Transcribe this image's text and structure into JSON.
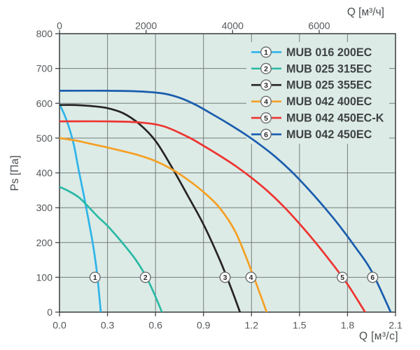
{
  "chart_data": {
    "type": "line",
    "title": "",
    "x_axis_bottom": {
      "label": "Q [м³/с]",
      "tick_labels": [
        "0.0",
        "0.3",
        "0.6",
        "0.9",
        "1.2",
        "1.5",
        "1.8",
        "2.1"
      ],
      "tick_values": [
        0,
        0.3,
        0.6,
        0.9,
        1.2,
        1.5,
        1.8,
        2.1
      ],
      "range": [
        0,
        2.1
      ]
    },
    "x_axis_top": {
      "label": "Q [м³/ч]",
      "tick_labels": [
        "0",
        "2000",
        "4000",
        "6000"
      ],
      "tick_values": [
        0,
        2000,
        4000,
        6000
      ]
    },
    "y_axis": {
      "label": "Ps [Па]",
      "tick_labels": [
        "0",
        "100",
        "200",
        "300",
        "400",
        "500",
        "600",
        "700",
        "800"
      ],
      "tick_values": [
        0,
        100,
        200,
        300,
        400,
        500,
        600,
        700,
        800
      ],
      "range": [
        0,
        800
      ]
    },
    "grid": true,
    "legend_position": "top-right",
    "series": [
      {
        "id": "1",
        "name": "MUB 016 200EC",
        "color": "#2fb4e9",
        "marker": {
          "q": 0.222,
          "p": 100
        },
        "points": [
          [
            0,
            597
          ],
          [
            0.03,
            568
          ],
          [
            0.06,
            530
          ],
          [
            0.09,
            480
          ],
          [
            0.12,
            408
          ],
          [
            0.15,
            340
          ],
          [
            0.18,
            268
          ],
          [
            0.21,
            192
          ],
          [
            0.235,
            110
          ],
          [
            0.258,
            0
          ]
        ]
      },
      {
        "id": "2",
        "name": "MUB 025 315EC",
        "color": "#2cb9a5",
        "marker": {
          "q": 0.537,
          "p": 100
        },
        "points": [
          [
            0,
            360
          ],
          [
            0.06,
            347
          ],
          [
            0.12,
            330
          ],
          [
            0.18,
            303
          ],
          [
            0.24,
            274
          ],
          [
            0.3,
            248
          ],
          [
            0.36,
            217
          ],
          [
            0.42,
            184
          ],
          [
            0.48,
            148
          ],
          [
            0.54,
            103
          ],
          [
            0.59,
            55
          ],
          [
            0.64,
            0
          ]
        ]
      },
      {
        "id": "3",
        "name": "MUB 025 355EC",
        "color": "#272324",
        "marker": {
          "q": 1.035,
          "p": 100
        },
        "points": [
          [
            0,
            595
          ],
          [
            0.1,
            595
          ],
          [
            0.2,
            592
          ],
          [
            0.3,
            586
          ],
          [
            0.4,
            571
          ],
          [
            0.5,
            540
          ],
          [
            0.6,
            492
          ],
          [
            0.7,
            418
          ],
          [
            0.8,
            336
          ],
          [
            0.9,
            252
          ],
          [
            1.0,
            152
          ],
          [
            1.07,
            72
          ],
          [
            1.128,
            0
          ]
        ]
      },
      {
        "id": "4",
        "name": "MUB 042 400EC",
        "color": "#f5a023",
        "marker": {
          "q": 1.197,
          "p": 100
        },
        "points": [
          [
            0,
            500
          ],
          [
            0.1,
            493
          ],
          [
            0.2,
            483
          ],
          [
            0.3,
            473
          ],
          [
            0.4,
            462
          ],
          [
            0.5,
            450
          ],
          [
            0.6,
            434
          ],
          [
            0.7,
            411
          ],
          [
            0.8,
            381
          ],
          [
            0.9,
            345
          ],
          [
            1.0,
            300
          ],
          [
            1.1,
            230
          ],
          [
            1.2,
            118
          ],
          [
            1.295,
            0
          ]
        ]
      },
      {
        "id": "5",
        "name": "MUB 042 450EC-K",
        "color": "#ee3430",
        "marker": {
          "q": 1.768,
          "p": 100
        },
        "points": [
          [
            0,
            548
          ],
          [
            0.3,
            548
          ],
          [
            0.5,
            545
          ],
          [
            0.65,
            534
          ],
          [
            0.8,
            504
          ],
          [
            0.9,
            478
          ],
          [
            1.0,
            450
          ],
          [
            1.1,
            420
          ],
          [
            1.2,
            386
          ],
          [
            1.3,
            348
          ],
          [
            1.4,
            304
          ],
          [
            1.5,
            254
          ],
          [
            1.6,
            200
          ],
          [
            1.7,
            142
          ],
          [
            1.8,
            80
          ],
          [
            1.91,
            0
          ]
        ]
      },
      {
        "id": "6",
        "name": "MUB 042 450EC",
        "color": "#1a5dae",
        "marker": {
          "q": 1.957,
          "p": 100
        },
        "points": [
          [
            0,
            636
          ],
          [
            0.3,
            636
          ],
          [
            0.5,
            634
          ],
          [
            0.65,
            628
          ],
          [
            0.75,
            616
          ],
          [
            0.85,
            596
          ],
          [
            0.95,
            570
          ],
          [
            1.05,
            543
          ],
          [
            1.15,
            514
          ],
          [
            1.25,
            482
          ],
          [
            1.35,
            446
          ],
          [
            1.45,
            404
          ],
          [
            1.55,
            356
          ],
          [
            1.65,
            304
          ],
          [
            1.75,
            248
          ],
          [
            1.85,
            186
          ],
          [
            1.95,
            118
          ],
          [
            2.07,
            0
          ]
        ]
      }
    ]
  },
  "colors": {
    "plot_bg": "#dcebe6",
    "grid": "#777c7e",
    "border": "#43484a",
    "tick_text": "#54585b",
    "legend_text": "#3f4244",
    "marker_stroke": "#6a6e70",
    "marker_fill": "#ffffff",
    "marker_number": "#2b2b2b"
  }
}
